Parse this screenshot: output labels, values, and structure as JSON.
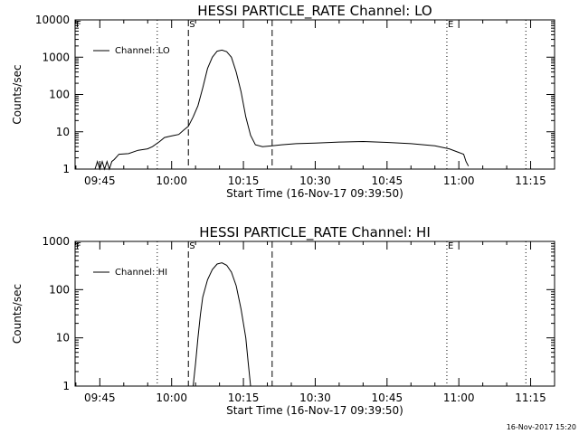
{
  "chart_data": [
    {
      "type": "line",
      "title": "HESSI PARTICLE_RATE Channel: LO",
      "ylabel": "Counts/sec",
      "xlabel": "Start Time (16-Nov-17 09:39:50)",
      "yscale": "log",
      "ylim": [
        1,
        10000
      ],
      "xlim": [
        "09:39:50",
        "11:20:00"
      ],
      "x_ticks": [
        "09:45",
        "10:00",
        "10:15",
        "10:30",
        "10:45",
        "11:00",
        "11:15"
      ],
      "y_ticks": [
        "1",
        "10",
        "100",
        "1000",
        "10000"
      ],
      "legend": {
        "label": "Channel: LO",
        "placement": "top-left"
      },
      "markers": [
        {
          "label": "F",
          "time": "09:39:50",
          "style": "none"
        },
        {
          "label": "",
          "time": "09:57:00",
          "style": "dotted"
        },
        {
          "label": "S",
          "time": "10:03:30",
          "style": "dashed"
        },
        {
          "label": "",
          "time": "10:21:00",
          "style": "dashed"
        },
        {
          "label": "E",
          "time": "10:57:30",
          "style": "dotted"
        },
        {
          "label": "",
          "time": "11:14:00",
          "style": "dotted"
        }
      ],
      "series": [
        {
          "values": [
            [
              "09:44:00",
              1
            ],
            [
              "09:44:30",
              1.6
            ],
            [
              "09:45:00",
              1
            ],
            [
              "09:45:30",
              1.6
            ],
            [
              "09:46:00",
              1
            ],
            [
              "09:46:30",
              1.6
            ],
            [
              "09:47:00",
              1
            ],
            [
              "09:47:30",
              1.6
            ],
            [
              "09:48:00",
              1.8
            ],
            [
              "09:49:00",
              2.5
            ],
            [
              "09:51:00",
              2.6
            ],
            [
              "09:53:00",
              3.2
            ],
            [
              "09:55:00",
              3.5
            ],
            [
              "09:56:00",
              4
            ],
            [
              "09:57:30",
              5.5
            ],
            [
              "09:58:30",
              7
            ],
            [
              "09:59:30",
              7.5
            ],
            [
              "10:00:30",
              8
            ],
            [
              "10:01:30",
              8.5
            ],
            [
              "10:02:30",
              11
            ],
            [
              "10:03:30",
              14
            ],
            [
              "10:04:30",
              25
            ],
            [
              "10:05:30",
              50
            ],
            [
              "10:06:30",
              150
            ],
            [
              "10:07:30",
              500
            ],
            [
              "10:08:30",
              1000
            ],
            [
              "10:09:30",
              1450
            ],
            [
              "10:10:30",
              1550
            ],
            [
              "10:11:30",
              1400
            ],
            [
              "10:12:30",
              1000
            ],
            [
              "10:13:30",
              400
            ],
            [
              "10:14:30",
              120
            ],
            [
              "10:15:30",
              25
            ],
            [
              "10:16:30",
              8
            ],
            [
              "10:17:30",
              4.5
            ],
            [
              "10:19:00",
              4
            ],
            [
              "10:21:00",
              4.2
            ],
            [
              "10:23:00",
              4.5
            ],
            [
              "10:26:00",
              4.8
            ],
            [
              "10:30:00",
              5
            ],
            [
              "10:35:00",
              5.3
            ],
            [
              "10:40:00",
              5.5
            ],
            [
              "10:45:00",
              5.2
            ],
            [
              "10:50:00",
              4.8
            ],
            [
              "10:55:00",
              4.2
            ],
            [
              "10:58:00",
              3.5
            ],
            [
              "11:00:00",
              2.8
            ],
            [
              "11:01:00",
              2.5
            ],
            [
              "11:01:30",
              1.6
            ],
            [
              "11:02:00",
              1.2
            ]
          ]
        }
      ]
    },
    {
      "type": "line",
      "title": "HESSI PARTICLE_RATE Channel: HI",
      "ylabel": "Counts/sec",
      "xlabel": "Start Time (16-Nov-17 09:39:50)",
      "yscale": "log",
      "ylim": [
        1,
        1000
      ],
      "xlim": [
        "09:39:50",
        "11:20:00"
      ],
      "x_ticks": [
        "09:45",
        "10:00",
        "10:15",
        "10:30",
        "10:45",
        "11:00",
        "11:15"
      ],
      "y_ticks": [
        "1",
        "10",
        "100",
        "1000"
      ],
      "legend": {
        "label": "Channel: HI",
        "placement": "top-left"
      },
      "markers": [
        {
          "label": "F",
          "time": "09:39:50",
          "style": "none"
        },
        {
          "label": "",
          "time": "09:57:00",
          "style": "dotted"
        },
        {
          "label": "S",
          "time": "10:03:30",
          "style": "dashed"
        },
        {
          "label": "",
          "time": "10:21:00",
          "style": "dashed"
        },
        {
          "label": "E",
          "time": "10:57:30",
          "style": "dotted"
        },
        {
          "label": "",
          "time": "11:14:00",
          "style": "dotted"
        }
      ],
      "series": [
        {
          "values": [
            [
              "10:04:30",
              1
            ],
            [
              "10:05:00",
              3
            ],
            [
              "10:05:30",
              10
            ],
            [
              "10:06:00",
              30
            ],
            [
              "10:06:30",
              70
            ],
            [
              "10:07:30",
              160
            ],
            [
              "10:08:30",
              260
            ],
            [
              "10:09:30",
              340
            ],
            [
              "10:10:30",
              360
            ],
            [
              "10:11:30",
              320
            ],
            [
              "10:12:30",
              230
            ],
            [
              "10:13:30",
              120
            ],
            [
              "10:14:30",
              40
            ],
            [
              "10:15:30",
              10
            ],
            [
              "10:16:00",
              3
            ],
            [
              "10:16:30",
              1
            ]
          ]
        }
      ]
    }
  ],
  "footer": {
    "timestamp": "16-Nov-2017 15:20"
  }
}
